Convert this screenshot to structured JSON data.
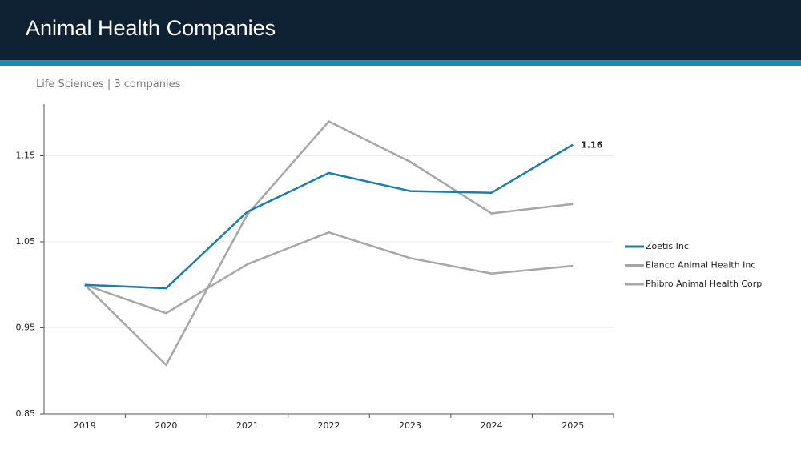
{
  "chart_data": {
    "type": "line",
    "title": "Animal Health Companies",
    "subtitle": "Life Sciences  |  3 companies",
    "categories": [
      "2019",
      "2020",
      "2021",
      "2022",
      "2023",
      "2024",
      "2025"
    ],
    "series": [
      {
        "name": "Zoetis Inc",
        "color": "#1a7fa8",
        "values": [
          1.0,
          0.996,
          1.085,
          1.13,
          1.109,
          1.107,
          1.163
        ],
        "value_labels": [
          null,
          null,
          null,
          null,
          null,
          null,
          "1.16"
        ]
      },
      {
        "name": "Elanco Animal Health Inc",
        "color": "#a6a6a6",
        "values": [
          1.0,
          0.907,
          1.082,
          1.19,
          1.143,
          1.083,
          1.094
        ]
      },
      {
        "name": "Phibro Animal Health Corp",
        "color": "#a6a6a6",
        "values": [
          1.0,
          0.967,
          1.024,
          1.061,
          1.031,
          1.013,
          1.022
        ]
      }
    ],
    "ylim": [
      0.85,
      1.21
    ],
    "yticks": [
      0.85,
      0.95,
      1.05,
      1.15
    ],
    "grid": true,
    "legend": "right"
  }
}
